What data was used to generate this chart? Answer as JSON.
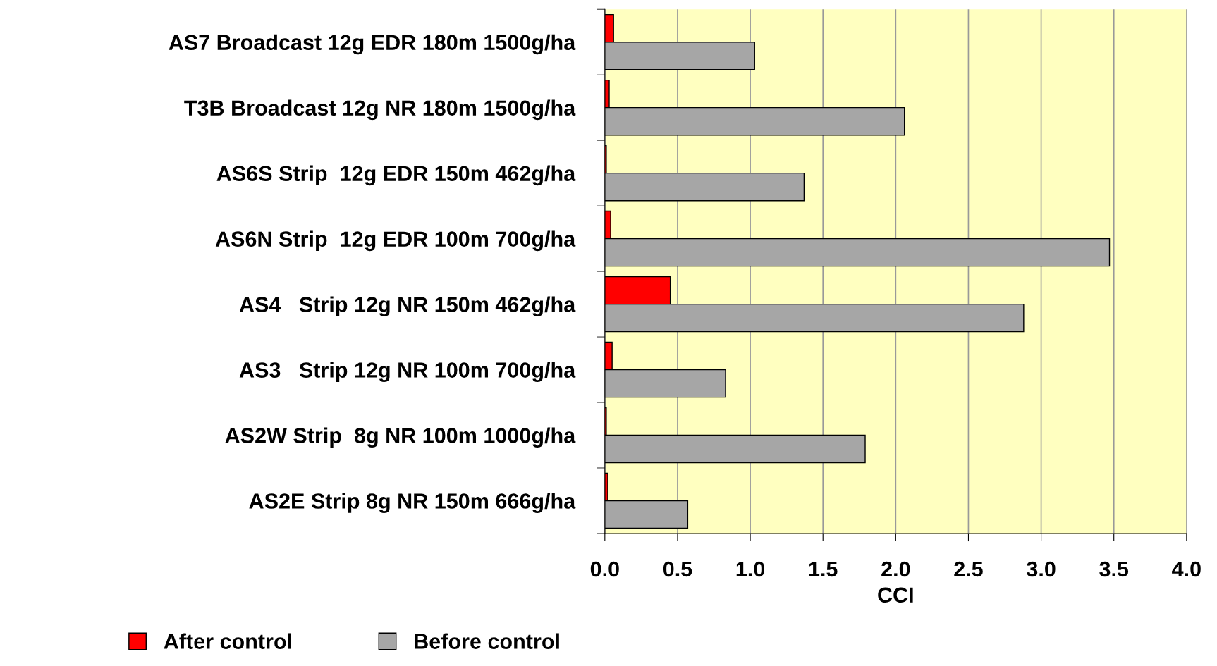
{
  "chart_data": {
    "type": "bar",
    "orientation": "horizontal",
    "xlabel": "CCI",
    "categories": [
      "AS7 Broadcast 12g EDR 180m 1500g/ha",
      "T3B Broadcast 12g NR 180m 1500g/ha",
      "AS6S Strip  12g EDR 150m 462g/ha",
      "AS6N Strip  12g EDR 100m 700g/ha",
      "AS4   Strip 12g NR 150m 462g/ha",
      "AS3   Strip 12g NR 100m 700g/ha",
      "AS2W Strip  8g NR 100m 1000g/ha",
      "AS2E Strip 8g NR 150m 666g/ha"
    ],
    "series": [
      {
        "name": "After control",
        "color": "#ff0000",
        "values": [
          0.06,
          0.03,
          0.01,
          0.04,
          0.45,
          0.05,
          0.01,
          0.02
        ]
      },
      {
        "name": "Before control",
        "color": "#a6a6a6",
        "values": [
          1.03,
          2.06,
          1.37,
          3.47,
          2.88,
          0.83,
          1.79,
          0.57
        ]
      }
    ],
    "xlim": [
      0,
      4
    ],
    "xticks": [
      {
        "value": 0,
        "label": "0.0"
      },
      {
        "value": 0.5,
        "label": "0.5"
      },
      {
        "value": 1,
        "label": "1.0"
      },
      {
        "value": 1.5,
        "label": "1.5"
      },
      {
        "value": 2,
        "label": "2.0"
      },
      {
        "value": 2.5,
        "label": "2.5"
      },
      {
        "value": 3,
        "label": "3.0"
      },
      {
        "value": 3.5,
        "label": "3.5"
      },
      {
        "value": 4,
        "label": "4.0"
      }
    ],
    "grid": "x",
    "legend": "bottom"
  }
}
